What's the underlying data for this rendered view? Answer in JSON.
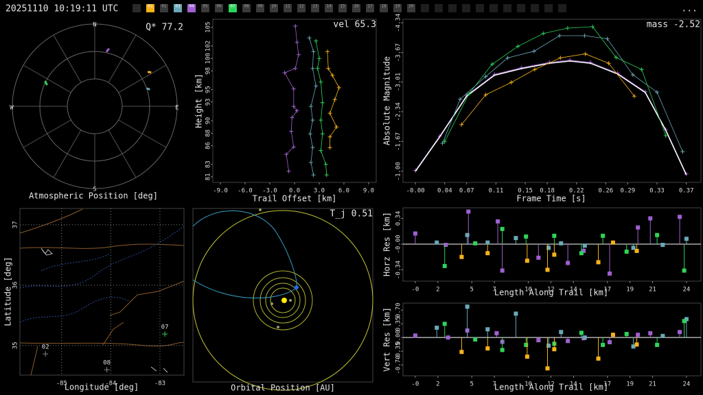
{
  "header": {
    "timestamp": "20251110 10:19:11 UTC",
    "more": "...",
    "cameras": [
      {
        "label": "01",
        "color": "#f5b21b"
      },
      {
        "label": "02"
      },
      {
        "label": "03",
        "color": "#6aa8b8"
      },
      {
        "label": "04",
        "color": "#a060d0"
      },
      {
        "label": "05"
      },
      {
        "label": "06"
      },
      {
        "label": "07",
        "color": "#2fd35a"
      },
      {
        "label": "08"
      },
      {
        "label": "09"
      },
      {
        "label": "10"
      },
      {
        "label": "11"
      },
      {
        "label": "12"
      },
      {
        "label": "13"
      },
      {
        "label": "14"
      },
      {
        "label": "15"
      },
      {
        "label": "16"
      },
      {
        "label": "17"
      },
      {
        "label": "18"
      },
      {
        "label": "19"
      },
      {
        "label": "20"
      }
    ]
  },
  "chart_data": [
    {
      "type": "polar",
      "title": "Atmospheric Position [deg]",
      "annotation": "Q* 77.2",
      "directions": [
        "N",
        "E",
        "S",
        "W"
      ],
      "rlim": [
        0,
        90
      ],
      "rticks": [
        30,
        60,
        90
      ],
      "azticks": [
        0,
        30,
        60,
        90,
        120,
        150,
        180,
        210,
        240,
        270,
        300,
        330
      ],
      "series": [
        {
          "color": "#a060d0",
          "azimuth": [
            12,
            14
          ],
          "zenith": [
            61,
            65
          ]
        },
        {
          "color": "#f5b21b",
          "azimuth": [
            57,
            59
          ],
          "zenith": [
            69,
            72
          ]
        },
        {
          "color": "#6aa8b8",
          "azimuth": [
            71,
            73
          ],
          "zenith": [
            60,
            63
          ]
        },
        {
          "color": "#2fd35a",
          "azimuth": [
            294,
            297
          ],
          "zenith": [
            57,
            61
          ]
        }
      ]
    },
    {
      "type": "line",
      "xlabel": "Trail Offset [km]",
      "ylabel": "Height [km]",
      "annotation": "vel 65.3",
      "xlim": [
        -9.92,
        9.92
      ],
      "ylim": [
        80.1,
        106.3
      ],
      "xticks": [
        {
          "value": -9,
          "label": "-9.0"
        },
        {
          "value": -6,
          "label": "-6.0"
        },
        {
          "value": -3,
          "label": "-3.0"
        },
        {
          "value": 0,
          "label": "0.0"
        },
        {
          "value": 3,
          "label": "3.0"
        },
        {
          "value": 6,
          "label": "6.0"
        },
        {
          "value": 9,
          "label": "9.0"
        }
      ],
      "yticks": [
        81,
        83,
        86,
        88,
        90,
        93,
        95,
        98,
        100,
        102,
        105
      ],
      "series": [
        {
          "color": "#a060d0",
          "x": [
            0.1,
            0.3,
            0.5,
            0.1,
            -1.2,
            -0.1,
            -0.1,
            0.3,
            -0.3,
            -0.4,
            -0.1,
            -1.0,
            -0.7
          ],
          "values": [
            105.2,
            102.6,
            100.6,
            98.4,
            97.7,
            95.1,
            92.3,
            91.6,
            90.5,
            88.3,
            85.8,
            84.6,
            81.9
          ]
        },
        {
          "color": "#6aa8b8",
          "x": [
            1.8,
            2.3,
            2.2,
            2.6,
            2.0,
            2.2,
            1.9,
            2.2,
            2.0,
            2.3
          ],
          "values": [
            103.3,
            101.1,
            98.4,
            95.6,
            92.3,
            90.1,
            87.9,
            85.7,
            83.3,
            81.3
          ]
        },
        {
          "color": "#2fd35a",
          "x": [
            2.6,
            3.0,
            2.8,
            3.2,
            3.4,
            3.2,
            3.4,
            3.2,
            3.8,
            3.9
          ],
          "values": [
            102.8,
            100.0,
            98.4,
            96.2,
            92.9,
            90.1,
            87.9,
            85.2,
            83.0,
            81.3
          ]
        },
        {
          "color": "#f5b21b",
          "x": [
            4.0,
            4.1,
            4.6,
            5.4,
            4.9,
            4.3,
            5.1,
            4.3,
            4.3
          ],
          "values": [
            101.1,
            98.4,
            97.3,
            95.3,
            93.4,
            91.2,
            89.0,
            87.4,
            85.7
          ]
        }
      ]
    },
    {
      "type": "line",
      "xlabel": "Frame Time [s]",
      "ylabel": "Absolute Magnitude",
      "annotation": "mass -2.52",
      "xlim": [
        -0.017,
        0.39
      ],
      "ylim": [
        -0.75,
        -4.42
      ],
      "xticks": [
        {
          "value": 0,
          "label": "-0.00"
        },
        0.04,
        0.07,
        0.11,
        0.15,
        0.18,
        0.22,
        0.26,
        0.29,
        0.33,
        0.37
      ],
      "yticks": [
        -4.34,
        -3.67,
        -3.01,
        -2.34,
        -1.67,
        {
          "value": -1,
          "label": "-1.00"
        }
      ],
      "series": [
        {
          "color": "#a060d0",
          "x": [
            0,
            0.033,
            0.07,
            0.108,
            0.145,
            0.183,
            0.211,
            0.239,
            0.276,
            0.314,
            0.342,
            0.37
          ],
          "values": [
            -1.02,
            -1.79,
            -2.71,
            -3.18,
            -3.33,
            -3.45,
            -3.5,
            -3.45,
            -3.21,
            -2.79,
            -1.94,
            -0.94
          ]
        },
        {
          "color": "#ffffff",
          "markers": false,
          "x": [
            0,
            0.033,
            0.07,
            0.108,
            0.145,
            0.183,
            0.211,
            0.239,
            0.276,
            0.314,
            0.342,
            0.37
          ],
          "values": [
            -1.0,
            -1.77,
            -2.69,
            -3.16,
            -3.31,
            -3.43,
            -3.48,
            -3.43,
            -3.19,
            -2.77,
            -1.92,
            -0.92
          ]
        },
        {
          "color": "#6aa8b8",
          "x": [
            0.037,
            0.061,
            0.096,
            0.126,
            0.162,
            0.197,
            0.231,
            0.262,
            0.297,
            0.33,
            0.365
          ],
          "values": [
            -1.63,
            -2.62,
            -3.13,
            -3.55,
            -3.7,
            -4.05,
            -4.05,
            -3.98,
            -3.17,
            -2.78,
            -1.44
          ]
        },
        {
          "color": "#2fd35a",
          "x": [
            0.04,
            0.073,
            0.105,
            0.14,
            0.175,
            0.208,
            0.242,
            0.274,
            0.309,
            0.342
          ],
          "values": [
            -1.67,
            -2.74,
            -3.41,
            -3.81,
            -4.1,
            -4.22,
            -4.25,
            -3.56,
            -3.29,
            -1.8
          ]
        },
        {
          "color": "#f5b21b",
          "x": [
            0.063,
            0.096,
            0.131,
            0.163,
            0.198,
            0.232,
            0.264,
            0.299
          ],
          "values": [
            -2.05,
            -2.72,
            -3.0,
            -3.29,
            -3.55,
            -3.64,
            -3.43,
            -2.69
          ]
        }
      ]
    },
    {
      "type": "stem",
      "xlabel": "Length Along Trail [km]",
      "ylabel": "Horz Res [km]",
      "xlim": [
        -1.09,
        25.28
      ],
      "ylim": [
        -0.49,
        0.48
      ],
      "xticks": [
        {
          "value": 0,
          "label": "-0"
        },
        2,
        5,
        7,
        10,
        12,
        14,
        17,
        19,
        21,
        24
      ],
      "yticks": [
        0.34,
        {
          "value": 0,
          "label": "-0.00"
        },
        -0.34
      ],
      "series": [
        {
          "color": "#a060d0",
          "x": [
            0,
            2.7,
            4.7,
            7.3,
            7.7,
            10.9,
            13.5,
            14.9,
            17.2,
            19.7,
            20.8,
            23.4
          ],
          "values": [
            0.14,
            -0.01,
            0.43,
            0.3,
            -0.35,
            -0.18,
            -0.25,
            -0.09,
            -0.39,
            0.22,
            0.34,
            0.36
          ]
        },
        {
          "color": "#6aa8b8",
          "x": [
            1.9,
            4.6,
            6.4,
            8.9,
            11.8,
            12.9,
            15.0,
            19.3,
            21.9,
            24.0
          ],
          "values": [
            0.02,
            0.12,
            0.02,
            0.08,
            -0.05,
            0.01,
            -0.02,
            -0.05,
            -0.01,
            0.07
          ]
        },
        {
          "color": "#2fd35a",
          "x": [
            2.6,
            5.3,
            7.7,
            9.8,
            12.3,
            14.7,
            16.6,
            18.7,
            21.4,
            23.8
          ],
          "values": [
            -0.29,
            0.01,
            0.2,
            0.1,
            0.11,
            -0.12,
            0.11,
            -0.1,
            0.12,
            -0.35
          ]
        },
        {
          "color": "#f5b21b",
          "x": [
            4.1,
            6.4,
            9.9,
            11.7,
            12.3,
            16.2,
            17.5,
            19.6
          ],
          "values": [
            -0.17,
            -0.12,
            -0.22,
            -0.34,
            -0.14,
            -0.24,
            0.02,
            -0.09
          ]
        }
      ]
    },
    {
      "type": "stem",
      "xlabel": "Length Along Trail [km]",
      "ylabel": "Vert Res [km]",
      "xlim": [
        -1.09,
        25.28
      ],
      "ylim": [
        -0.98,
        0.88
      ],
      "xticks": [
        {
          "value": 0,
          "label": "-0"
        },
        2,
        5,
        7,
        10,
        12,
        14,
        17,
        19,
        21,
        24
      ],
      "yticks": [
        {
          "value": 0.7,
          "label": "0.70"
        },
        0.35,
        {
          "value": 0,
          "label": "0.00"
        },
        -0.35,
        {
          "value": -0.7,
          "label": "-0.70"
        }
      ],
      "series": [
        {
          "color": "#a060d0",
          "x": [
            0,
            2.9,
            4.6,
            7.2,
            7.7,
            10.9,
            13.5,
            14.9,
            17.2,
            19.7,
            20.8,
            23.4
          ],
          "values": [
            0.05,
            0.0,
            0.18,
            0.11,
            -0.11,
            -0.07,
            -0.09,
            -0.02,
            -0.12,
            0.07,
            0.11,
            0.14
          ]
        },
        {
          "color": "#6aa8b8",
          "x": [
            1.9,
            4.6,
            6.4,
            8.9,
            11.8,
            12.9,
            15.0,
            19.3,
            21.9,
            24.0
          ],
          "values": [
            0.25,
            0.79,
            0.21,
            0.61,
            -0.21,
            0.14,
            0.0,
            -0.23,
            0.04,
            0.47
          ]
        },
        {
          "color": "#2fd35a",
          "x": [
            2.6,
            5.3,
            7.7,
            9.8,
            12.3,
            14.7,
            16.6,
            18.7,
            21.4,
            23.8
          ],
          "values": [
            0.35,
            -0.05,
            -0.32,
            -0.19,
            -0.16,
            0.12,
            -0.19,
            0.09,
            -0.19,
            0.42
          ]
        },
        {
          "color": "#f5b21b",
          "x": [
            4.1,
            6.4,
            9.9,
            11.7,
            12.3,
            16.2,
            17.5,
            19.6
          ],
          "values": [
            -0.37,
            -0.28,
            -0.49,
            -0.79,
            -0.3,
            -0.54,
            0.07,
            -0.18
          ]
        }
      ]
    },
    {
      "type": "map",
      "xlabel": "Longitude [deg]",
      "ylabel": "Latitude [deg]",
      "xlim": [
        -85.85,
        -82.51
      ],
      "ylim": [
        34.51,
        37.27
      ],
      "xticks": [
        -85,
        -84,
        -83
      ],
      "yticks": [
        37,
        36,
        35
      ],
      "grid": true,
      "stations": [
        {
          "label": "07",
          "lon": -82.9,
          "lat": 35.19,
          "color": "#2fd35a"
        },
        {
          "label": "02",
          "lon": -85.33,
          "lat": 34.86,
          "color": "#888888"
        },
        {
          "label": "08",
          "lon": -84.08,
          "lat": 34.6,
          "color": "#888888"
        }
      ]
    },
    {
      "type": "orbit",
      "title": "Orbital Position [AU]",
      "annotation": "T_j 0.51"
    }
  ]
}
